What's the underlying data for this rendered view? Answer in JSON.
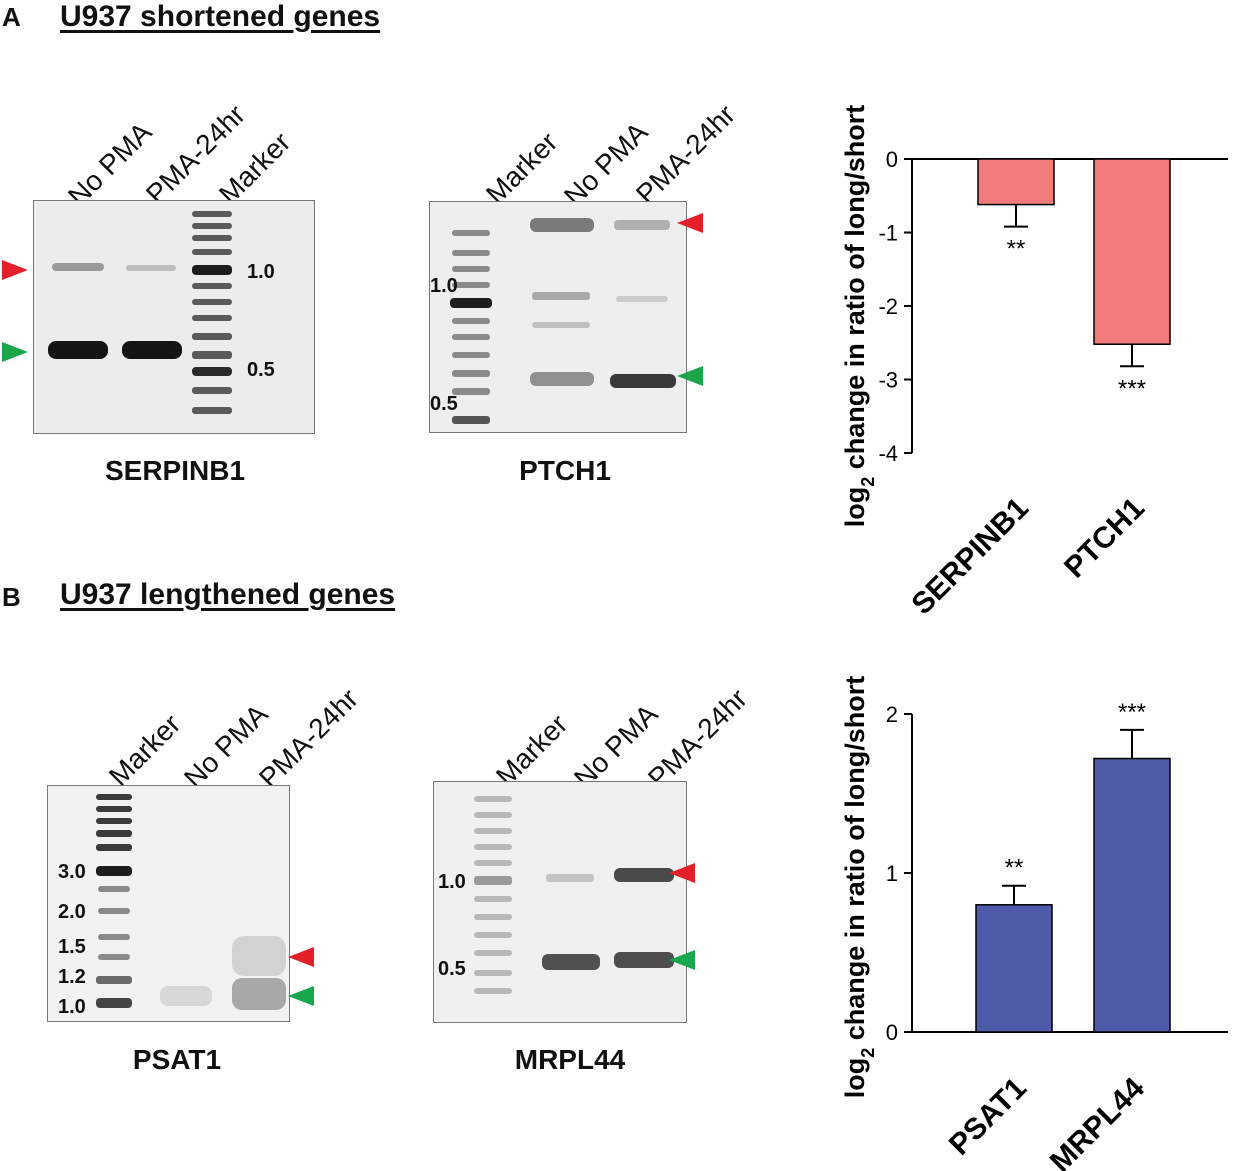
{
  "panels": [
    {
      "letter": "A",
      "title": "U937 shortened genes"
    },
    {
      "letter": "B",
      "title": "U937 lengthened genes"
    }
  ],
  "gels": {
    "serpinb1": {
      "gene": "SERPINB1",
      "lanes": [
        "No PMA",
        "PMA-24hr",
        "Marker"
      ],
      "sizes": [
        "1.0",
        "0.5"
      ]
    },
    "ptch1": {
      "gene": "PTCH1",
      "lanes": [
        "Marker",
        "No PMA",
        "PMA-24hr"
      ],
      "sizes": [
        "1.0",
        "0.5"
      ]
    },
    "psat1": {
      "gene": "PSAT1",
      "lanes": [
        "Marker",
        "No PMA",
        "PMA-24hr"
      ],
      "sizes": [
        "3.0",
        "2.0",
        "1.5",
        "1.2",
        "1.0"
      ]
    },
    "mrpl44": {
      "gene": "MRPL44",
      "lanes": [
        "Marker",
        "No PMA",
        "PMA-24hr"
      ],
      "sizes": [
        "1.0",
        "0.5"
      ]
    }
  },
  "colors": {
    "long_arrow": "#e3202a",
    "short_arrow": "#1aa64a",
    "chart_a_bar": "#f27b7b",
    "chart_b_bar": "#4f5aa8"
  },
  "chart_data": [
    {
      "type": "bar",
      "categories": [
        "SERPINB1",
        "PTCH1"
      ],
      "values": [
        -0.62,
        -2.52
      ],
      "errors": [
        0.3,
        0.3
      ],
      "significance": [
        "**",
        "***"
      ],
      "ylabel_main": "log",
      "ylabel_sub": "2",
      "ylabel_rest": " change in ratio of long/short",
      "ylim": [
        -4,
        0
      ],
      "yticks": [
        "0",
        "-1",
        "-2",
        "-3",
        "-4"
      ],
      "grid": false
    },
    {
      "type": "bar",
      "categories": [
        "PSAT1",
        "MRPL44"
      ],
      "values": [
        0.8,
        1.72
      ],
      "errors": [
        0.12,
        0.18
      ],
      "significance": [
        "**",
        "***"
      ],
      "ylabel_main": "log",
      "ylabel_sub": "2",
      "ylabel_rest": " change in ratio of long/short",
      "ylim": [
        0,
        2
      ],
      "yticks": [
        "0",
        "1",
        "2"
      ],
      "grid": false
    }
  ]
}
